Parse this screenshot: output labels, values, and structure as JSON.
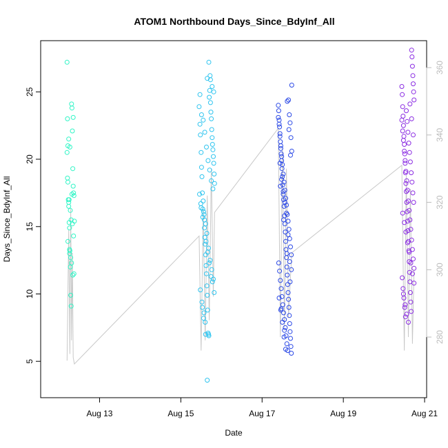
{
  "chart_data": {
    "type": "scatter",
    "title": "ATOM1 Northbound Days_Since_BdyInf_All",
    "xlabel": "Date",
    "ylabel": "Days_Since_BdyInf_All",
    "x_ticks": [
      "Aug 13",
      "Aug 15",
      "Aug 17",
      "Aug 19",
      "Aug 21"
    ],
    "x_tick_values": [
      13,
      15,
      17,
      19,
      21
    ],
    "xlim": [
      11.55,
      21.05
    ],
    "y_ticks": [
      5,
      10,
      15,
      20,
      25
    ],
    "ylim": [
      2.3,
      28.8
    ],
    "y2_ticks": [
      280,
      300,
      320,
      340,
      360
    ],
    "y2lim": [
      262,
      368
    ],
    "grid": false,
    "colors": {
      "group1": "#2ff5c6",
      "group2": "#2dc4ef",
      "group3": "#2a48e6",
      "group4": "#8a2be2",
      "line": "#c8c8c8",
      "right_axis": "#bbbbbb"
    },
    "series": [
      {
        "x": [
          12.2,
          12.21,
          12.22,
          12.22,
          12.23,
          12.24,
          12.24,
          12.25,
          12.26,
          12.26,
          12.27,
          12.28,
          12.29,
          12.3,
          12.31,
          12.32,
          12.33,
          12.34,
          12.35,
          12.36,
          12.37,
          12.38,
          12.2,
          12.21,
          12.25,
          12.28,
          12.3,
          12.33,
          12.36,
          12.22,
          12.26,
          12.29,
          12.31,
          12.34,
          12.37,
          12.24,
          12.27,
          12.32,
          12.35
        ],
        "y": [
          27.2,
          23.0,
          21.0,
          18.3,
          17.0,
          16.8,
          16.5,
          15.3,
          14.9,
          13.3,
          13.2,
          12.0,
          9.9,
          9.1,
          24.1,
          23.8,
          22.1,
          19.3,
          18.0,
          17.5,
          17.3,
          15.4,
          20.5,
          18.6,
          17.0,
          16.2,
          15.5,
          15.2,
          14.3,
          13.9,
          13.0,
          12.7,
          12.3,
          11.4,
          11.5,
          21.5,
          20.9,
          17.4,
          23.1
        ]
      },
      {
        "x": [
          15.45,
          15.47,
          15.48,
          15.5,
          15.51,
          15.52,
          15.53,
          15.55,
          15.56,
          15.58,
          15.59,
          15.6,
          15.61,
          15.62,
          15.63,
          15.64,
          15.65,
          15.66,
          15.67,
          15.68,
          15.69,
          15.7,
          15.71,
          15.72,
          15.73,
          15.74,
          15.75,
          15.76,
          15.77,
          15.78,
          15.79,
          15.8,
          15.81,
          15.82,
          15.83,
          15.46,
          15.49,
          15.54,
          15.57,
          15.61,
          15.64,
          15.68,
          15.72,
          15.76,
          15.8,
          15.48,
          15.52,
          15.56,
          15.6,
          15.65,
          15.69,
          15.73,
          15.77,
          15.81,
          15.47,
          15.51,
          15.55,
          15.59,
          15.63,
          15.67,
          15.71,
          15.75,
          15.79,
          15.5,
          15.54,
          15.58,
          15.62,
          15.66,
          15.7,
          15.74,
          15.78,
          15.82,
          15.53,
          15.57,
          15.61,
          15.65
        ],
        "y": [
          23.9,
          22.6,
          21.8,
          20.5,
          19.4,
          18.7,
          17.5,
          16.9,
          16.1,
          15.5,
          14.2,
          13.7,
          12.9,
          12.1,
          11.5,
          10.6,
          9.9,
          8.8,
          7.1,
          7.0,
          6.9,
          24.6,
          25.1,
          26.2,
          24.2,
          23.5,
          23.0,
          22.2,
          21.6,
          21.1,
          20.7,
          20.2,
          19.7,
          18.9,
          18.2,
          17.4,
          16.7,
          16.3,
          15.9,
          15.2,
          14.5,
          13.4,
          12.5,
          11.8,
          11.1,
          10.3,
          9.4,
          8.2,
          7.9,
          3.6,
          27.2,
          25.9,
          25.4,
          25.0,
          24.8,
          23.3,
          22.9,
          22.0,
          20.9,
          19.9,
          19.2,
          18.4,
          17.8,
          16.4,
          15.7,
          14.9,
          13.9,
          13.1,
          12.3,
          11.3,
          10.9,
          10.1,
          9.0,
          8.6,
          7.0,
          26.0
        ]
      },
      {
        "x": [
          17.4,
          17.41,
          17.42,
          17.43,
          17.44,
          17.45,
          17.46,
          17.47,
          17.48,
          17.49,
          17.5,
          17.51,
          17.52,
          17.53,
          17.54,
          17.55,
          17.56,
          17.57,
          17.58,
          17.59,
          17.6,
          17.61,
          17.62,
          17.63,
          17.64,
          17.65,
          17.66,
          17.67,
          17.68,
          17.69,
          17.7,
          17.71,
          17.72,
          17.73,
          17.4,
          17.42,
          17.44,
          17.46,
          17.48,
          17.5,
          17.52,
          17.54,
          17.56,
          17.58,
          17.6,
          17.62,
          17.64,
          17.66,
          17.68,
          17.7,
          17.72,
          17.41,
          17.43,
          17.45,
          17.47,
          17.49,
          17.51,
          17.53,
          17.55,
          17.57,
          17.59,
          17.61,
          17.63,
          17.65,
          17.67,
          17.69,
          17.71,
          17.73,
          17.44,
          17.48,
          17.52,
          17.56,
          17.6,
          17.64,
          17.68,
          17.72,
          17.42,
          17.46,
          17.5,
          17.54,
          17.58,
          17.62,
          17.66,
          17.7,
          17.45,
          17.53,
          17.61,
          17.69,
          17.47,
          17.55
        ],
        "y": [
          24.0,
          23.6,
          22.9,
          22.4,
          21.9,
          21.3,
          20.8,
          20.4,
          19.9,
          19.3,
          18.7,
          18.1,
          17.6,
          17.0,
          16.5,
          15.8,
          15.2,
          14.6,
          13.9,
          13.3,
          12.7,
          12.0,
          11.4,
          10.7,
          10.1,
          9.6,
          9.0,
          8.4,
          7.8,
          7.2,
          6.7,
          6.1,
          5.6,
          25.5,
          23.1,
          22.6,
          21.7,
          21.0,
          20.2,
          19.6,
          18.9,
          18.3,
          17.7,
          17.1,
          16.6,
          15.9,
          15.4,
          14.8,
          14.1,
          13.5,
          12.9,
          12.3,
          11.7,
          11.0,
          10.4,
          9.8,
          9.2,
          8.6,
          8.1,
          7.5,
          6.9,
          6.3,
          5.8,
          24.4,
          23.3,
          22.7,
          21.6,
          20.6,
          19.7,
          18.5,
          17.4,
          16.8,
          16.0,
          14.4,
          12.4,
          11.8,
          9.7,
          8.8,
          7.9,
          6.8,
          5.9,
          24.3,
          22.2,
          20.3,
          18.0,
          15.5,
          13.0,
          10.9,
          8.9,
          7.3
        ]
      },
      {
        "x": [
          20.44,
          20.45,
          20.46,
          20.47,
          20.48,
          20.49,
          20.5,
          20.51,
          20.52,
          20.53,
          20.54,
          20.55,
          20.56,
          20.57,
          20.58,
          20.59,
          20.6,
          20.61,
          20.62,
          20.63,
          20.64,
          20.65,
          20.66,
          20.67,
          20.68,
          20.69,
          20.7,
          20.71,
          20.72,
          20.73,
          20.74,
          20.44,
          20.46,
          20.48,
          20.5,
          20.52,
          20.54,
          20.56,
          20.58,
          20.6,
          20.62,
          20.64,
          20.66,
          20.68,
          20.7,
          20.72,
          20.74,
          20.45,
          20.47,
          20.49,
          20.51,
          20.53,
          20.55,
          20.57,
          20.59,
          20.61,
          20.63,
          20.65,
          20.67,
          20.69,
          20.71,
          20.73,
          20.46,
          20.5,
          20.54,
          20.58,
          20.62,
          20.66,
          20.7,
          20.74,
          20.48,
          20.52,
          20.56,
          20.6,
          20.64,
          20.68,
          20.72
        ],
        "y": [
          25.4,
          24.8,
          23.9,
          23.2,
          22.5,
          21.7,
          21.1,
          20.4,
          19.7,
          19.0,
          18.2,
          17.6,
          16.8,
          16.1,
          15.4,
          14.7,
          13.9,
          13.2,
          12.4,
          11.6,
          10.9,
          10.1,
          9.4,
          8.7,
          28.1,
          27.6,
          26.9,
          26.2,
          25.6,
          25.0,
          24.4,
          22.9,
          22.1,
          21.4,
          20.6,
          19.9,
          19.1,
          18.4,
          17.7,
          16.9,
          16.2,
          15.5,
          14.8,
          14.0,
          13.3,
          12.6,
          11.9,
          11.2,
          10.4,
          9.7,
          9.0,
          8.3,
          23.6,
          22.8,
          22.0,
          21.2,
          20.5,
          19.8,
          19.0,
          18.3,
          17.5,
          16.8,
          16.0,
          15.3,
          14.6,
          13.8,
          13.1,
          12.3,
          11.5,
          10.8,
          10.0,
          9.2,
          8.5,
          7.9,
          24.1,
          23.0,
          21.8
        ]
      }
    ],
    "line": {
      "x": [
        12.2,
        12.24,
        12.27,
        12.29,
        12.31,
        12.33,
        12.35,
        12.38,
        15.45,
        15.5,
        15.55,
        15.6,
        15.65,
        15.7,
        15.75,
        15.8,
        15.83,
        17.4,
        17.45,
        17.5,
        17.55,
        17.6,
        17.65,
        17.7,
        17.73,
        20.44,
        20.5,
        20.55,
        20.6,
        20.65,
        20.7,
        20.74
      ],
      "y2": [
        273,
        312,
        275,
        318,
        279,
        305,
        274,
        272,
        310,
        276,
        318,
        279,
        322,
        285,
        330,
        292,
        317,
        342,
        280,
        336,
        283,
        330,
        286,
        298,
        305,
        331,
        276,
        328,
        280,
        324,
        278,
        300
      ]
    }
  }
}
